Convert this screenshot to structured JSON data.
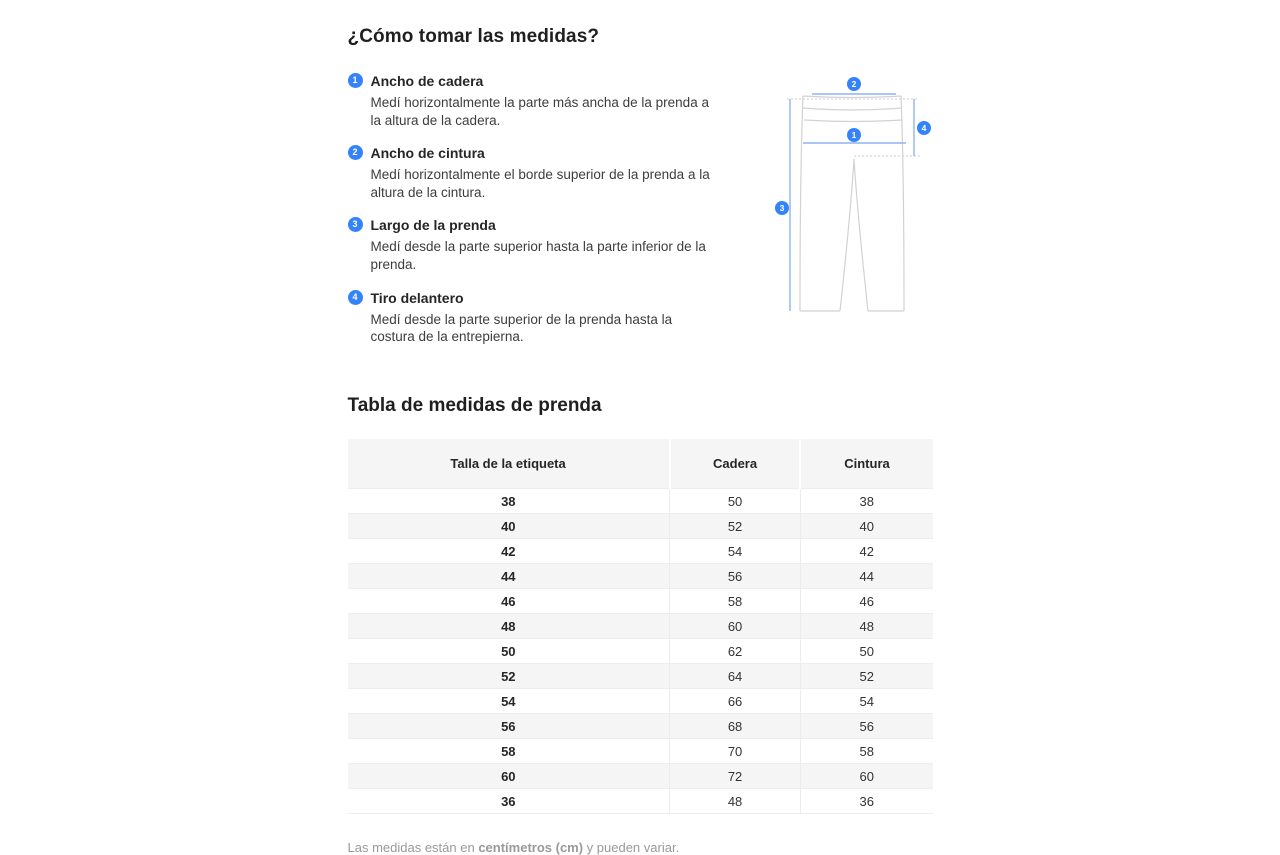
{
  "page": {
    "title": "¿Cómo tomar las medidas?",
    "accent_color": "#3483fa"
  },
  "instructions": {
    "items": [
      {
        "number": "1",
        "title": "Ancho de cadera",
        "description": "Medí horizontalmente la parte más ancha de la prenda a la altura de la cadera."
      },
      {
        "number": "2",
        "title": "Ancho de cintura",
        "description": "Medí horizontalmente el borde superior de la prenda a la altura de la cintura."
      },
      {
        "number": "3",
        "title": "Largo de la prenda",
        "description": "Medí desde la parte superior hasta la parte inferior de la prenda."
      },
      {
        "number": "4",
        "title": "Tiro delantero",
        "description": "Medí desde la parte superior de la prenda hasta la costura de la entrepierna."
      }
    ]
  },
  "diagram": {
    "type": "pants-measurement-schematic",
    "outline_color": "#d2d2d2",
    "dotted_color": "#cccccc",
    "measure_line_color": "#8fb4f2",
    "badge_color": "#3483fa"
  },
  "table": {
    "title": "Tabla de medidas de prenda",
    "headers": [
      "Talla de la etiqueta",
      "Cadera",
      "Cintura"
    ],
    "rows": [
      [
        "38",
        "50",
        "38"
      ],
      [
        "40",
        "52",
        "40"
      ],
      [
        "42",
        "54",
        "42"
      ],
      [
        "44",
        "56",
        "44"
      ],
      [
        "46",
        "58",
        "46"
      ],
      [
        "48",
        "60",
        "48"
      ],
      [
        "50",
        "62",
        "50"
      ],
      [
        "52",
        "64",
        "52"
      ],
      [
        "54",
        "66",
        "54"
      ],
      [
        "56",
        "68",
        "56"
      ],
      [
        "58",
        "70",
        "58"
      ],
      [
        "60",
        "72",
        "60"
      ],
      [
        "36",
        "48",
        "36"
      ]
    ]
  },
  "footer": {
    "note_prefix": "Las medidas están en ",
    "note_bold": "centímetros (cm)",
    "note_suffix": " y pueden variar."
  }
}
